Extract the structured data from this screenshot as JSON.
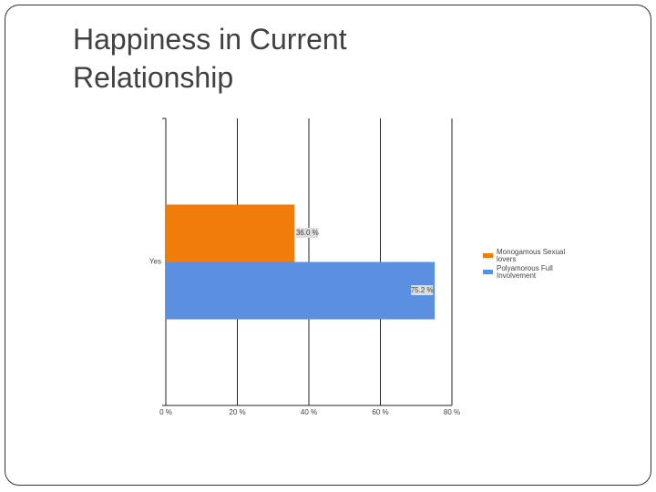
{
  "chart_data": {
    "type": "barh",
    "title": "Happiness in Current Relationship",
    "categories": [
      "Yes"
    ],
    "series": [
      {
        "name": "Monogamous Sexual lovers",
        "color": "#f07d0a",
        "values": [
          36
        ],
        "value_labels": [
          "36.0 %"
        ]
      },
      {
        "name": "Polyamorous Full Involvement",
        "color": "#5b8fe0",
        "values": [
          75.2
        ],
        "value_labels": [
          "75.2 %"
        ]
      }
    ],
    "xlim": [
      0,
      80
    ],
    "xticks": [
      {
        "value": 0,
        "label": "0 %"
      },
      {
        "value": 20,
        "label": "20 %"
      },
      {
        "value": 40,
        "label": "40 %"
      },
      {
        "value": 60,
        "label": "60 %"
      },
      {
        "value": 80,
        "label": "80 %"
      }
    ],
    "grid": true,
    "legend": "right"
  }
}
